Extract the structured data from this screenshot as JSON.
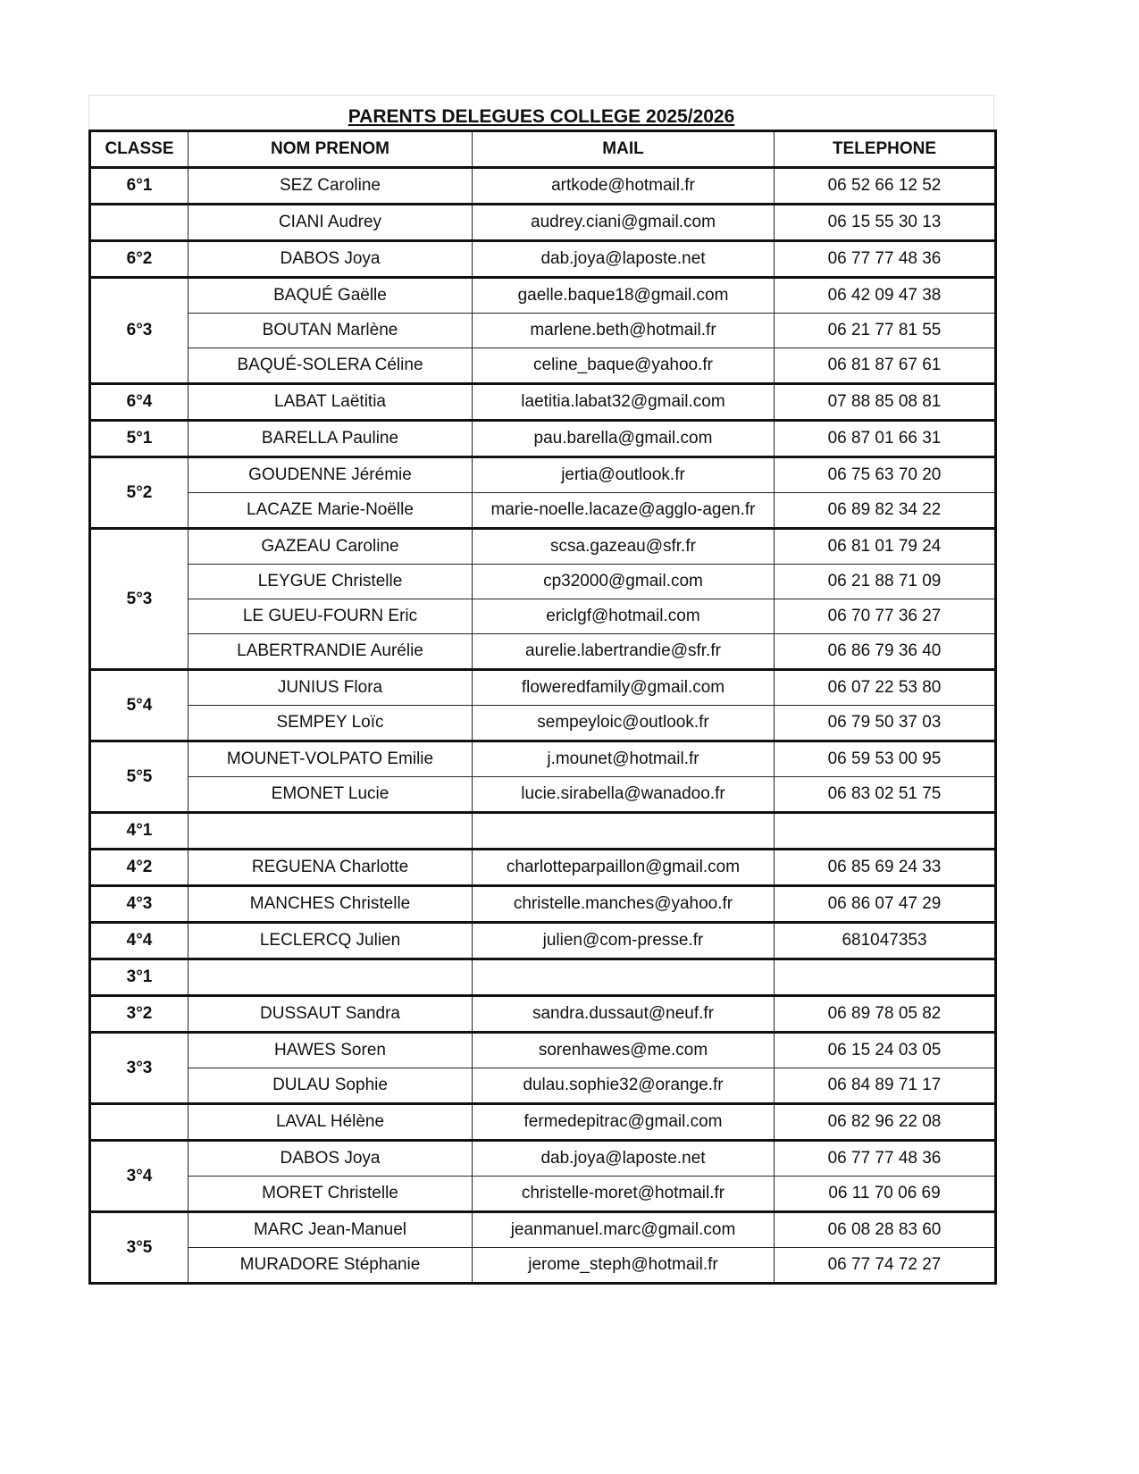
{
  "title": "PARENTS DELEGUES COLLEGE 2025/2026",
  "headers": [
    "CLASSE",
    "NOM PRENOM",
    "MAIL",
    "TELEPHONE"
  ],
  "groups": [
    {
      "classe": "6°1",
      "members": [
        {
          "name": "SEZ Caroline",
          "mail": "artkode@hotmail.fr",
          "phone": "06 52 66 12 52"
        }
      ]
    },
    {
      "classe": "",
      "members": [
        {
          "name": "CIANI Audrey",
          "mail": "audrey.ciani@gmail.com",
          "phone": "06 15 55 30 13"
        }
      ]
    },
    {
      "classe": "6°2",
      "members": [
        {
          "name": "DABOS Joya",
          "mail": "dab.joya@laposte.net",
          "phone": "06 77 77 48 36"
        }
      ]
    },
    {
      "classe": "6°3",
      "members": [
        {
          "name": "BAQUÉ Gaëlle",
          "mail": "gaelle.baque18@gmail.com",
          "phone": "06 42 09 47 38"
        },
        {
          "name": "BOUTAN Marlène",
          "mail": "marlene.beth@hotmail.fr",
          "phone": "06 21 77 81 55"
        },
        {
          "name": "BAQUÉ-SOLERA Céline",
          "mail": "celine_baque@yahoo.fr",
          "phone": "06 81 87 67 61"
        }
      ]
    },
    {
      "classe": "6°4",
      "members": [
        {
          "name": "LABAT Laëtitia",
          "mail": "laetitia.labat32@gmail.com",
          "phone": "07 88 85 08 81"
        }
      ]
    },
    {
      "classe": "5°1",
      "members": [
        {
          "name": "BARELLA Pauline",
          "mail": "pau.barella@gmail.com",
          "phone": "06 87 01 66 31"
        }
      ]
    },
    {
      "classe": "5°2",
      "members": [
        {
          "name": "GOUDENNE Jérémie",
          "mail": "jertia@outlook.fr",
          "phone": "06 75 63 70 20"
        },
        {
          "name": "LACAZE Marie-Noëlle",
          "mail": "marie-noelle.lacaze@agglo-agen.fr",
          "phone": "06 89 82 34 22"
        }
      ]
    },
    {
      "classe": "5°3",
      "members": [
        {
          "name": "GAZEAU Caroline",
          "mail": "scsa.gazeau@sfr.fr",
          "phone": "06 81 01 79 24"
        },
        {
          "name": "LEYGUE Christelle",
          "mail": "cp32000@gmail.com",
          "phone": "06 21 88 71 09"
        },
        {
          "name": "LE GUEU-FOURN Eric",
          "mail": "ericlgf@hotmail.com",
          "phone": "06 70 77 36 27"
        },
        {
          "name": "LABERTRANDIE Aurélie",
          "mail": "aurelie.labertrandie@sfr.fr",
          "phone": "06 86 79 36 40"
        }
      ]
    },
    {
      "classe": "5°4",
      "members": [
        {
          "name": "JUNIUS Flora",
          "mail": "floweredfamily@gmail.com",
          "phone": "06 07 22 53 80"
        },
        {
          "name": "SEMPEY Loïc",
          "mail": "sempeyloic@outlook.fr",
          "phone": "06 79 50 37 03"
        }
      ]
    },
    {
      "classe": "5°5",
      "members": [
        {
          "name": "MOUNET-VOLPATO Emilie",
          "mail": "j.mounet@hotmail.fr",
          "phone": "06 59 53 00 95"
        },
        {
          "name": "EMONET Lucie",
          "mail": "lucie.sirabella@wanadoo.fr",
          "phone": "06 83 02 51 75"
        }
      ]
    },
    {
      "classe": "4°1",
      "members": [
        {
          "name": "",
          "mail": "",
          "phone": ""
        }
      ]
    },
    {
      "classe": "4°2",
      "members": [
        {
          "name": "REGUENA Charlotte",
          "mail": "charlotteparpaillon@gmail.com",
          "phone": "06 85 69 24 33"
        }
      ]
    },
    {
      "classe": "4°3",
      "members": [
        {
          "name": "MANCHES Christelle",
          "mail": "christelle.manches@yahoo.fr",
          "phone": "06 86 07 47 29"
        }
      ]
    },
    {
      "classe": "4°4",
      "members": [
        {
          "name": "LECLERCQ Julien",
          "mail": "julien@com-presse.fr",
          "phone": "681047353"
        }
      ]
    },
    {
      "classe": "3°1",
      "members": [
        {
          "name": "",
          "mail": "",
          "phone": ""
        }
      ]
    },
    {
      "classe": "3°2",
      "members": [
        {
          "name": "DUSSAUT Sandra",
          "mail": "sandra.dussaut@neuf.fr",
          "phone": "06 89 78 05 82"
        }
      ]
    },
    {
      "classe": "3°3",
      "members": [
        {
          "name": "HAWES Soren",
          "mail": "sorenhawes@me.com",
          "phone": "06 15 24 03 05"
        },
        {
          "name": "DULAU Sophie",
          "mail": "dulau.sophie32@orange.fr",
          "phone": "06 84 89 71 17"
        }
      ]
    },
    {
      "classe": "",
      "members": [
        {
          "name": "LAVAL Hélène",
          "mail": "fermedepitrac@gmail.com",
          "phone": "06 82 96 22 08"
        }
      ]
    },
    {
      "classe": "3°4",
      "members": [
        {
          "name": "DABOS Joya",
          "mail": "dab.joya@laposte.net",
          "phone": "06 77 77 48 36"
        },
        {
          "name": "MORET Christelle",
          "mail": "christelle-moret@hotmail.fr",
          "phone": "06 11 70 06 69"
        }
      ]
    },
    {
      "classe": "3°5",
      "members": [
        {
          "name": "MARC Jean-Manuel",
          "mail": "jeanmanuel.marc@gmail.com",
          "phone": "06 08 28 83 60"
        },
        {
          "name": "MURADORE Stéphanie",
          "mail": "jerome_steph@hotmail.fr",
          "phone": "06 77 74 72 27"
        }
      ]
    }
  ]
}
